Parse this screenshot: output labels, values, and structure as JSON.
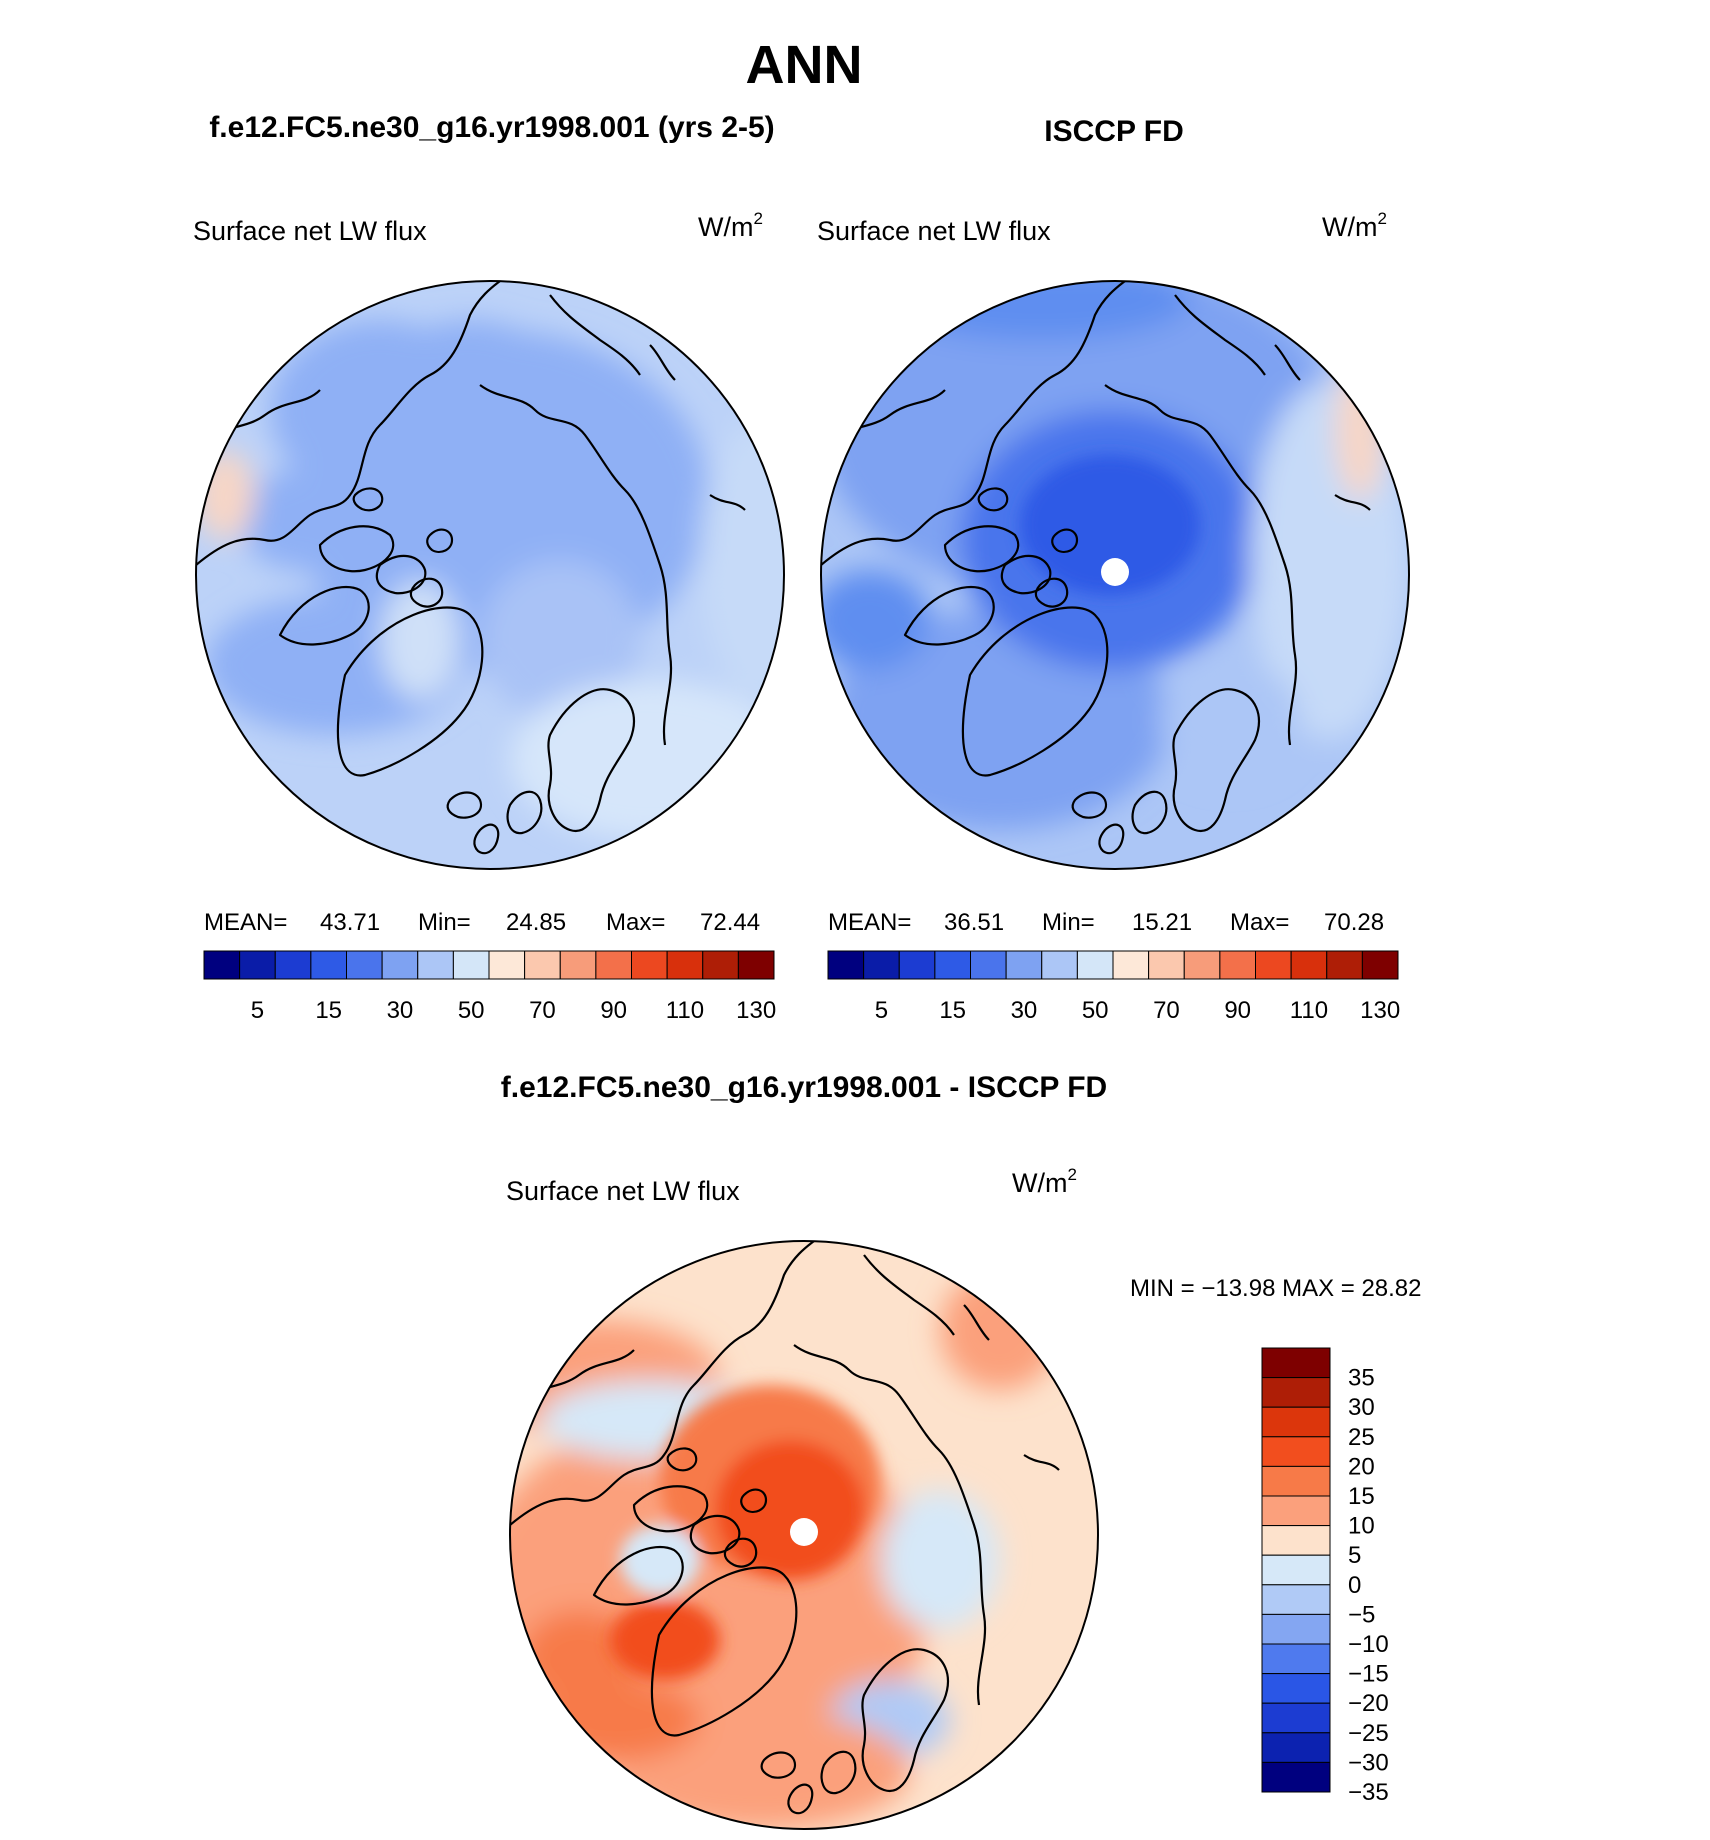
{
  "title": "ANN",
  "panels": [
    {
      "title": "f.e12.FC5.ne30_g16.yr1998.001 (yrs 2-5)",
      "field_label": "Surface net LW flux",
      "units_base": "W/m",
      "units_exp": "2",
      "stats": {
        "mean_label": "MEAN=",
        "mean": "43.71",
        "min_label": "Min=",
        "min": "24.85",
        "max_label": "Max=",
        "max": "72.44"
      }
    },
    {
      "title": "ISCCP FD",
      "field_label": "Surface net LW flux",
      "units_base": "W/m",
      "units_exp": "2",
      "stats": {
        "mean_label": "MEAN=",
        "mean": "36.51",
        "min_label": "Min=",
        "min": "15.21",
        "max_label": "Max=",
        "max": "70.28"
      }
    }
  ],
  "abs_colorbar": {
    "colors": [
      "#00007f",
      "#0a1ca8",
      "#1c3cd2",
      "#2e5ae6",
      "#4a74ec",
      "#7ea2f2",
      "#acc6f6",
      "#d4e6f8",
      "#fde8d8",
      "#fbc8ae",
      "#f79c7a",
      "#f3704a",
      "#ec4820",
      "#d8300c",
      "#ae1e06",
      "#7e0000"
    ],
    "ticks": [
      "5",
      "15",
      "30",
      "50",
      "70",
      "90",
      "110",
      "130"
    ]
  },
  "diff_panel": {
    "title": "f.e12.FC5.ne30_g16.yr1998.001 - ISCCP FD",
    "field_label": "Surface net LW flux",
    "units_base": "W/m",
    "units_exp": "2",
    "minmax_text": "MIN = −13.98 MAX =  28.82"
  },
  "diff_colorbar": {
    "colors": [
      "#7e0000",
      "#ae1e06",
      "#dc360c",
      "#f24e1e",
      "#f77a48",
      "#fba07c",
      "#fde2cc",
      "#d6e8f8",
      "#b0caf6",
      "#84a6f2",
      "#4f7aee",
      "#2a56e6",
      "#1c3cd2",
      "#0c22b0",
      "#00007f"
    ],
    "ticks": [
      "35",
      "30",
      "25",
      "20",
      "15",
      "10",
      "5",
      "0",
      "−5",
      "−10",
      "−15",
      "−20",
      "−25",
      "−30",
      "−35"
    ]
  },
  "colors": {
    "panel_a_fill": "#8fb0f5",
    "panel_b_fill": "#5f8ef0",
    "diff_fill": "#fbc8ae",
    "coast": "#000000"
  }
}
